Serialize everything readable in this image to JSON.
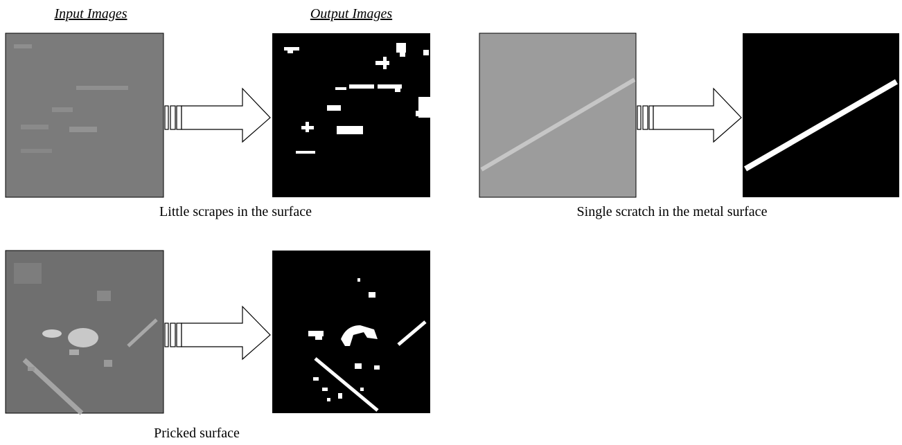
{
  "headers": {
    "input": "Input Images",
    "output": "Output Images"
  },
  "panels": [
    {
      "caption": "Little scrapes in the surface"
    },
    {
      "caption": "Single scratch in the metal surface"
    },
    {
      "caption": "Pricked surface"
    }
  ]
}
